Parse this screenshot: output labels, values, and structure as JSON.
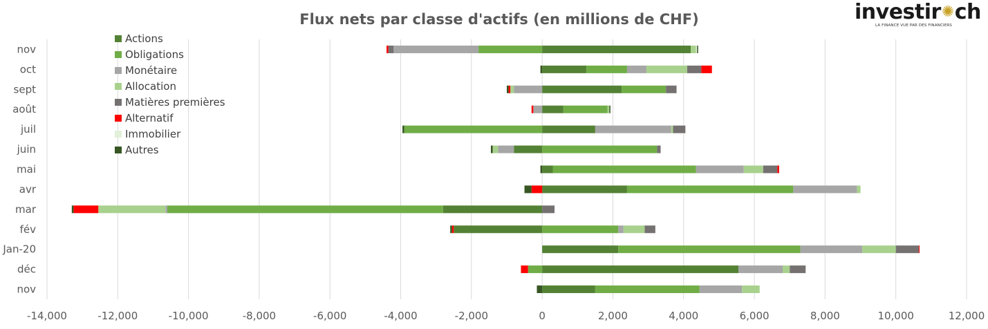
{
  "logo": {
    "text_before": "investir",
    "text_after": "ch",
    "tagline": "LA FINANCE VUE PAR DES FINANCIERS"
  },
  "chart_data": {
    "type": "bar",
    "orientation": "horizontal",
    "stacked": true,
    "title": "Flux nets par classe d'actifs (en millions de CHF)",
    "xlabel": "",
    "ylabel": "",
    "xlim": [
      -14000,
      12000
    ],
    "xticks": [
      -14000,
      -12000,
      -10000,
      -8000,
      -6000,
      -4000,
      -2000,
      0,
      2000,
      4000,
      6000,
      8000,
      10000,
      12000
    ],
    "xtick_labels": [
      "-14,000",
      "-12,000",
      "-10,000",
      "-8,000",
      "-6,000",
      "-4,000",
      "-2,000",
      "0",
      "2,000",
      "4,000",
      "6,000",
      "8,000",
      "10,000",
      "12,000"
    ],
    "grid": "vertical",
    "legend_position": "top-left",
    "categories": [
      "nov",
      "oct",
      "sept",
      "août",
      "juil",
      "juin",
      "mai",
      "avr",
      "mar",
      "fév",
      "Jan-20",
      "déc",
      "nov"
    ],
    "series": [
      {
        "name": "Actions",
        "color": "#548235",
        "values": [
          4200,
          1250,
          2250,
          600,
          1500,
          -800,
          300,
          2400,
          -2800,
          -2500,
          2150,
          5550,
          1500
        ]
      },
      {
        "name": "Obligations",
        "color": "#70ad47",
        "values": [
          -1800,
          1150,
          1250,
          1250,
          -3900,
          3250,
          4050,
          4700,
          -7800,
          2150,
          5150,
          -400,
          2950
        ]
      },
      {
        "name": "Monétaire",
        "color": "#a6a6a6",
        "values": [
          -2400,
          550,
          -800,
          -250,
          2150,
          -450,
          1350,
          1800,
          -50,
          150,
          1750,
          1250,
          1200
        ]
      },
      {
        "name": "Allocation",
        "color": "#a9d18e",
        "values": [
          150,
          1150,
          -100,
          50,
          50,
          -150,
          550,
          100,
          -1900,
          600,
          950,
          200,
          500
        ]
      },
      {
        "name": "Matières premières",
        "color": "#767171",
        "values": [
          -150,
          400,
          300,
          0,
          350,
          100,
          400,
          0,
          350,
          300,
          650,
          450,
          0
        ]
      },
      {
        "name": "Alternatif",
        "color": "#ff0000",
        "values": [
          -50,
          300,
          -50,
          -50,
          0,
          0,
          50,
          -300,
          -700,
          -50,
          20,
          -200,
          0
        ]
      },
      {
        "name": "Immobilier",
        "color": "#e2f0d9",
        "values": [
          30,
          0,
          0,
          0,
          0,
          0,
          0,
          0,
          0,
          0,
          0,
          0,
          0
        ]
      },
      {
        "name": "Autres",
        "color": "#375623",
        "values": [
          30,
          -50,
          -50,
          30,
          -50,
          -50,
          -50,
          -200,
          -50,
          -50,
          0,
          0,
          -150
        ]
      }
    ]
  }
}
